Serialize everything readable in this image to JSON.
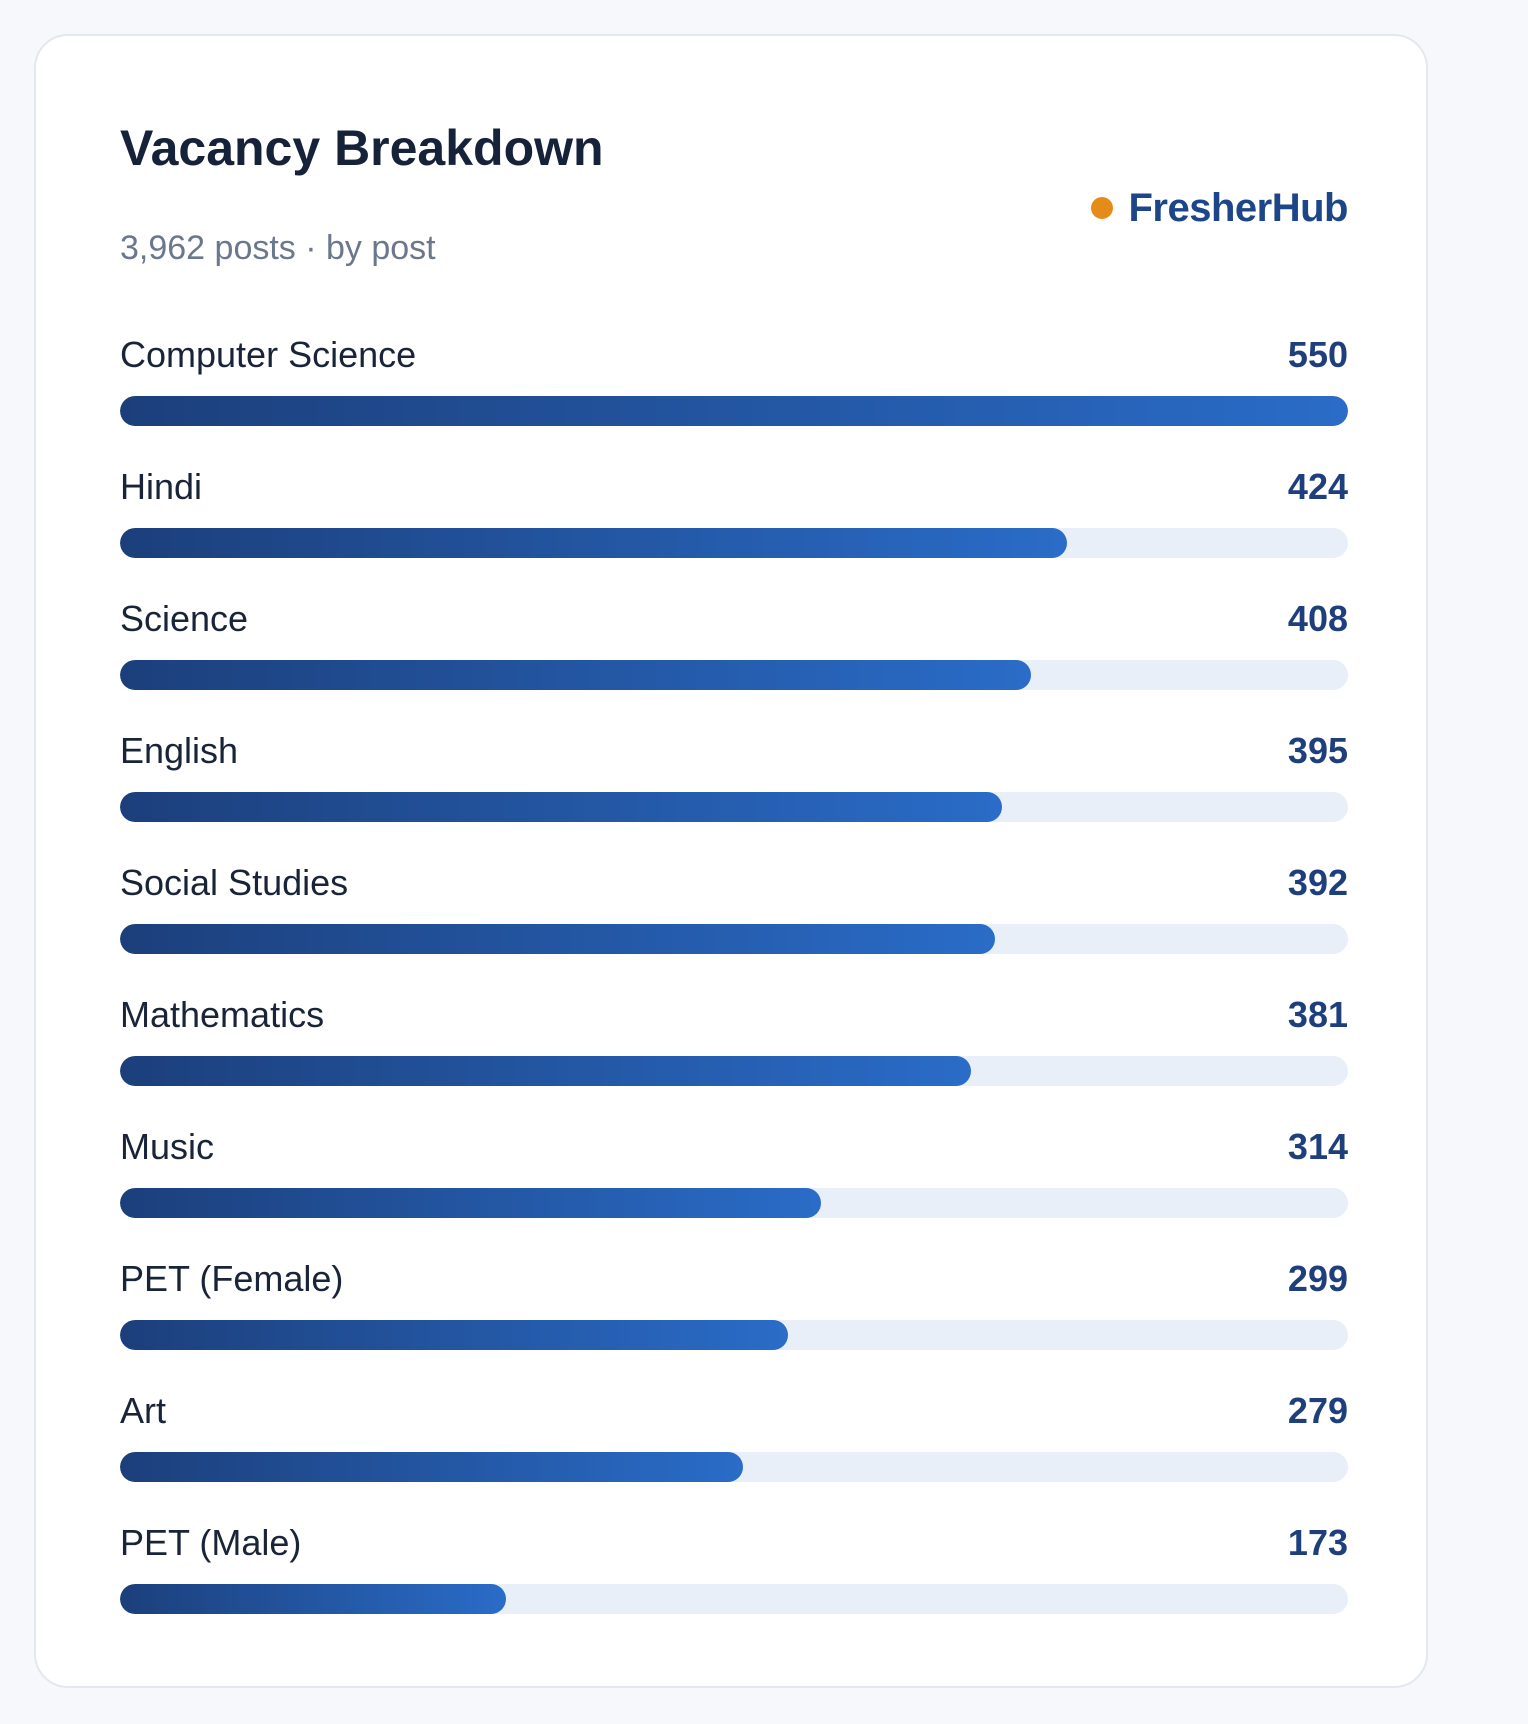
{
  "header": {
    "title": "Vacancy Breakdown",
    "subtitle": "3,962 posts · by post",
    "brand": "FresherHub"
  },
  "colors": {
    "accent_dot": "#e58c18",
    "brand_text": "#1d4688",
    "bar_start": "#1c3f7b",
    "bar_end": "#2a6cc8",
    "bar_track": "#e8eff9"
  },
  "chart_data": {
    "type": "bar",
    "orientation": "horizontal",
    "title": "Vacancy Breakdown",
    "subtitle": "3,962 posts · by post",
    "xlim": [
      0,
      550
    ],
    "categories": [
      "Computer Science",
      "Hindi",
      "Science",
      "English",
      "Social Studies",
      "Mathematics",
      "Music",
      "PET (Female)",
      "Art",
      "PET (Male)"
    ],
    "values": [
      550,
      424,
      408,
      395,
      392,
      381,
      314,
      299,
      279,
      173
    ]
  }
}
